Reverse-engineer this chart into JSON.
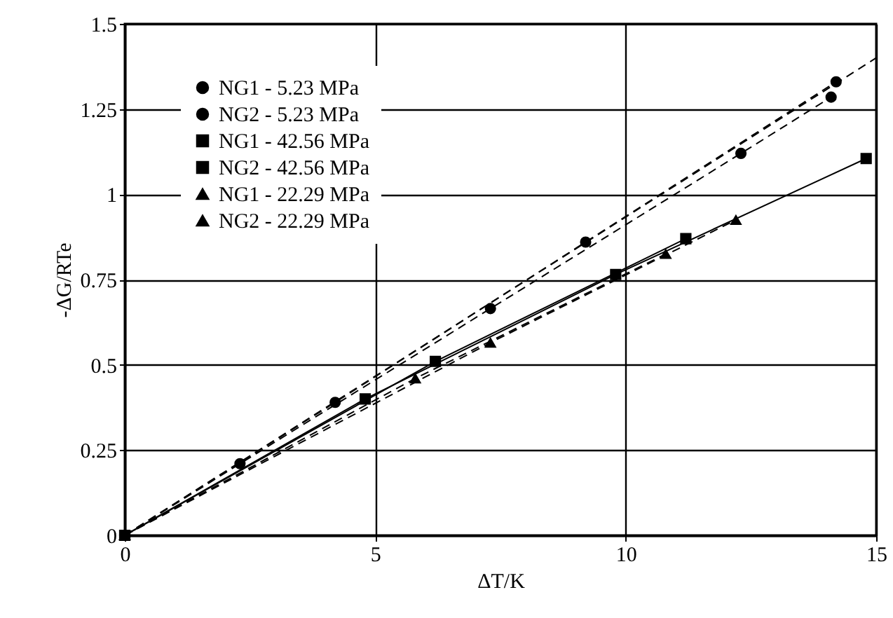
{
  "chart_data": {
    "type": "line",
    "xlabel": "ΔT/K",
    "ylabel": "-ΔG/RTe",
    "xlim": [
      0,
      15
    ],
    "ylim": [
      0,
      1.5
    ],
    "xticks": [
      0,
      5,
      10,
      15
    ],
    "yticks": [
      0,
      0.25,
      0.5,
      0.75,
      1,
      1.25,
      1.5
    ],
    "grid": true,
    "legend": "top left",
    "series": [
      {
        "name": "NG1 - 5.23 MPa",
        "color": "#000000",
        "marker": "circle",
        "line_style": "dashed",
        "x": [
          0,
          4.2,
          9.2,
          14.2
        ],
        "values": [
          0,
          0.39,
          0.86,
          1.33
        ]
      },
      {
        "name": "NG2 - 5.23 MPa",
        "color": "#000000",
        "marker": "circle",
        "line_style": "dashed",
        "x": [
          0,
          2.3,
          7.3,
          12.3,
          14.1
        ],
        "values": [
          0,
          0.21,
          0.665,
          1.12,
          1.285
        ]
      },
      {
        "name": "NG1 - 42.56 MPa",
        "color": "#000000",
        "marker": "square",
        "line_style": "solid",
        "x": [
          0,
          6.2,
          11.2
        ],
        "values": [
          0,
          0.51,
          0.87
        ]
      },
      {
        "name": "NG2 - 42.56 MPa",
        "color": "#000000",
        "marker": "square",
        "line_style": "solid",
        "x": [
          0,
          4.8,
          9.8,
          14.8
        ],
        "values": [
          0,
          0.4,
          0.765,
          1.105
        ]
      },
      {
        "name": "NG1 - 22.29 MPa",
        "color": "#000000",
        "marker": "triangle",
        "line_style": "dashed",
        "x": [
          0,
          7.3,
          12.2
        ],
        "values": [
          0,
          0.565,
          0.925
        ]
      },
      {
        "name": "NG2 - 22.29 MPa",
        "color": "#000000",
        "marker": "triangle",
        "line_style": "dashed",
        "x": [
          0,
          5.8,
          10.8
        ],
        "values": [
          0,
          0.46,
          0.825
        ]
      },
      {
        "type": "line",
        "color": "#000000",
        "marker": "none",
        "line_style": "dashed",
        "x": [
          0,
          15
        ],
        "values": [
          0,
          1.4
        ]
      }
    ]
  }
}
